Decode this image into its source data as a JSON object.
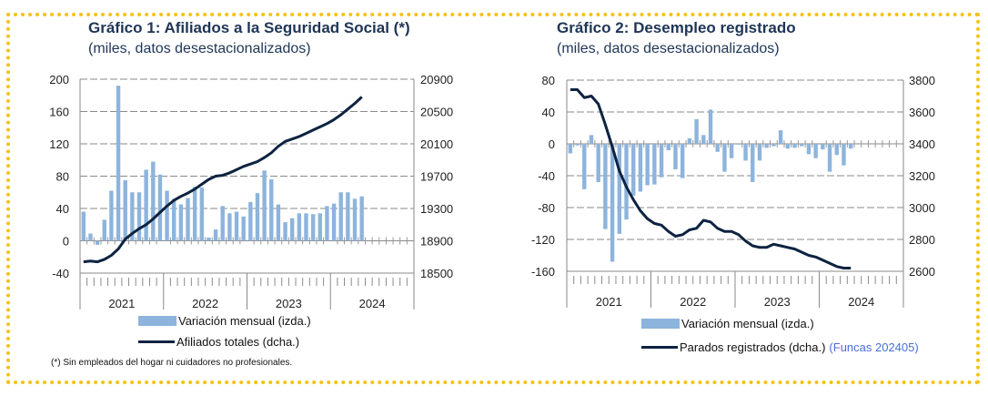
{
  "colors": {
    "bar": "#8db4dc",
    "line": "#0d2340",
    "frame": "#f3c316",
    "source": "#4a6fd6"
  },
  "chart_data": [
    {
      "type": "bar+line",
      "title": "Gráfico 1: Afiliados a la Seguridad Social (*)",
      "subtitle": "(miles, datos desestacionalizados)",
      "x_tick_labels": [
        "2021",
        "2022",
        "2023",
        "2024"
      ],
      "y_left": {
        "lim": [
          -40,
          200
        ],
        "ticks": [
          "-40",
          "0",
          "40",
          "80",
          "120",
          "160",
          "200"
        ]
      },
      "y_right": {
        "lim": [
          18500,
          20900
        ],
        "ticks": [
          "18500",
          "18900",
          "19300",
          "19700",
          "20100",
          "20500",
          "20900"
        ]
      },
      "grid": true,
      "series": [
        {
          "name": "Variación mensual (izda.)",
          "type": "bar",
          "axis": "left",
          "values": [
            36,
            9,
            -5,
            26,
            62,
            192,
            75,
            60,
            60,
            88,
            98,
            82,
            62,
            52,
            45,
            53,
            67,
            66,
            4,
            14,
            43,
            34,
            36,
            30,
            48,
            59,
            87,
            76,
            45,
            23,
            28,
            34,
            34,
            33,
            34,
            43,
            46,
            60,
            60,
            52,
            55
          ]
        },
        {
          "name": "Afiliados totales (dcha.)",
          "type": "line",
          "axis": "right",
          "values": [
            18640,
            18650,
            18640,
            18670,
            18720,
            18800,
            18920,
            18990,
            19050,
            19100,
            19170,
            19250,
            19330,
            19400,
            19450,
            19490,
            19540,
            19600,
            19660,
            19700,
            19710,
            19740,
            19780,
            19820,
            19850,
            19880,
            19930,
            19990,
            20070,
            20130,
            20160,
            20190,
            20230,
            20270,
            20310,
            20350,
            20400,
            20460,
            20530,
            20600,
            20680
          ]
        }
      ],
      "legend": "bottom",
      "footnote": "(*) Sin empleados del hogar ni cuidadores no profesionales."
    },
    {
      "type": "bar+line",
      "title": "Gráfico 2: Desempleo registrado",
      "subtitle": "(miles, datos desestacionalizados)",
      "x_tick_labels": [
        "2021",
        "2022",
        "2023",
        "2024"
      ],
      "y_left": {
        "lim": [
          -160,
          80
        ],
        "ticks": [
          "-160",
          "-120",
          "-80",
          "-40",
          "0",
          "40",
          "80"
        ]
      },
      "y_right": {
        "lim": [
          2600,
          3800
        ],
        "ticks": [
          "2600",
          "2800",
          "3000",
          "3200",
          "3400",
          "3600",
          "3800"
        ]
      },
      "grid": true,
      "series": [
        {
          "name": "Variación mensual (izda.)",
          "type": "bar",
          "axis": "left",
          "values": [
            -12,
            -2,
            -57,
            11,
            -48,
            -107,
            -148,
            -113,
            -95,
            -65,
            -60,
            -52,
            -51,
            -42,
            -8,
            -32,
            -43,
            7,
            31,
            11,
            43,
            -10,
            -35,
            -18,
            -1,
            -21,
            -48,
            -21,
            -5,
            -3,
            17,
            -6,
            -5,
            -3,
            -13,
            -18,
            -7,
            -35,
            -14,
            -27,
            -6
          ]
        },
        {
          "name": "Parados registrados (dcha.)",
          "type": "line",
          "axis": "right",
          "values": [
            3740,
            3740,
            3690,
            3700,
            3650,
            3520,
            3380,
            3230,
            3130,
            3050,
            2980,
            2930,
            2900,
            2890,
            2850,
            2820,
            2830,
            2860,
            2870,
            2920,
            2910,
            2870,
            2850,
            2850,
            2830,
            2790,
            2760,
            2750,
            2750,
            2770,
            2760,
            2750,
            2740,
            2720,
            2700,
            2690,
            2670,
            2650,
            2630,
            2620,
            2620
          ]
        }
      ],
      "legend": "bottom",
      "source": "(Funcas 202405)"
    }
  ]
}
